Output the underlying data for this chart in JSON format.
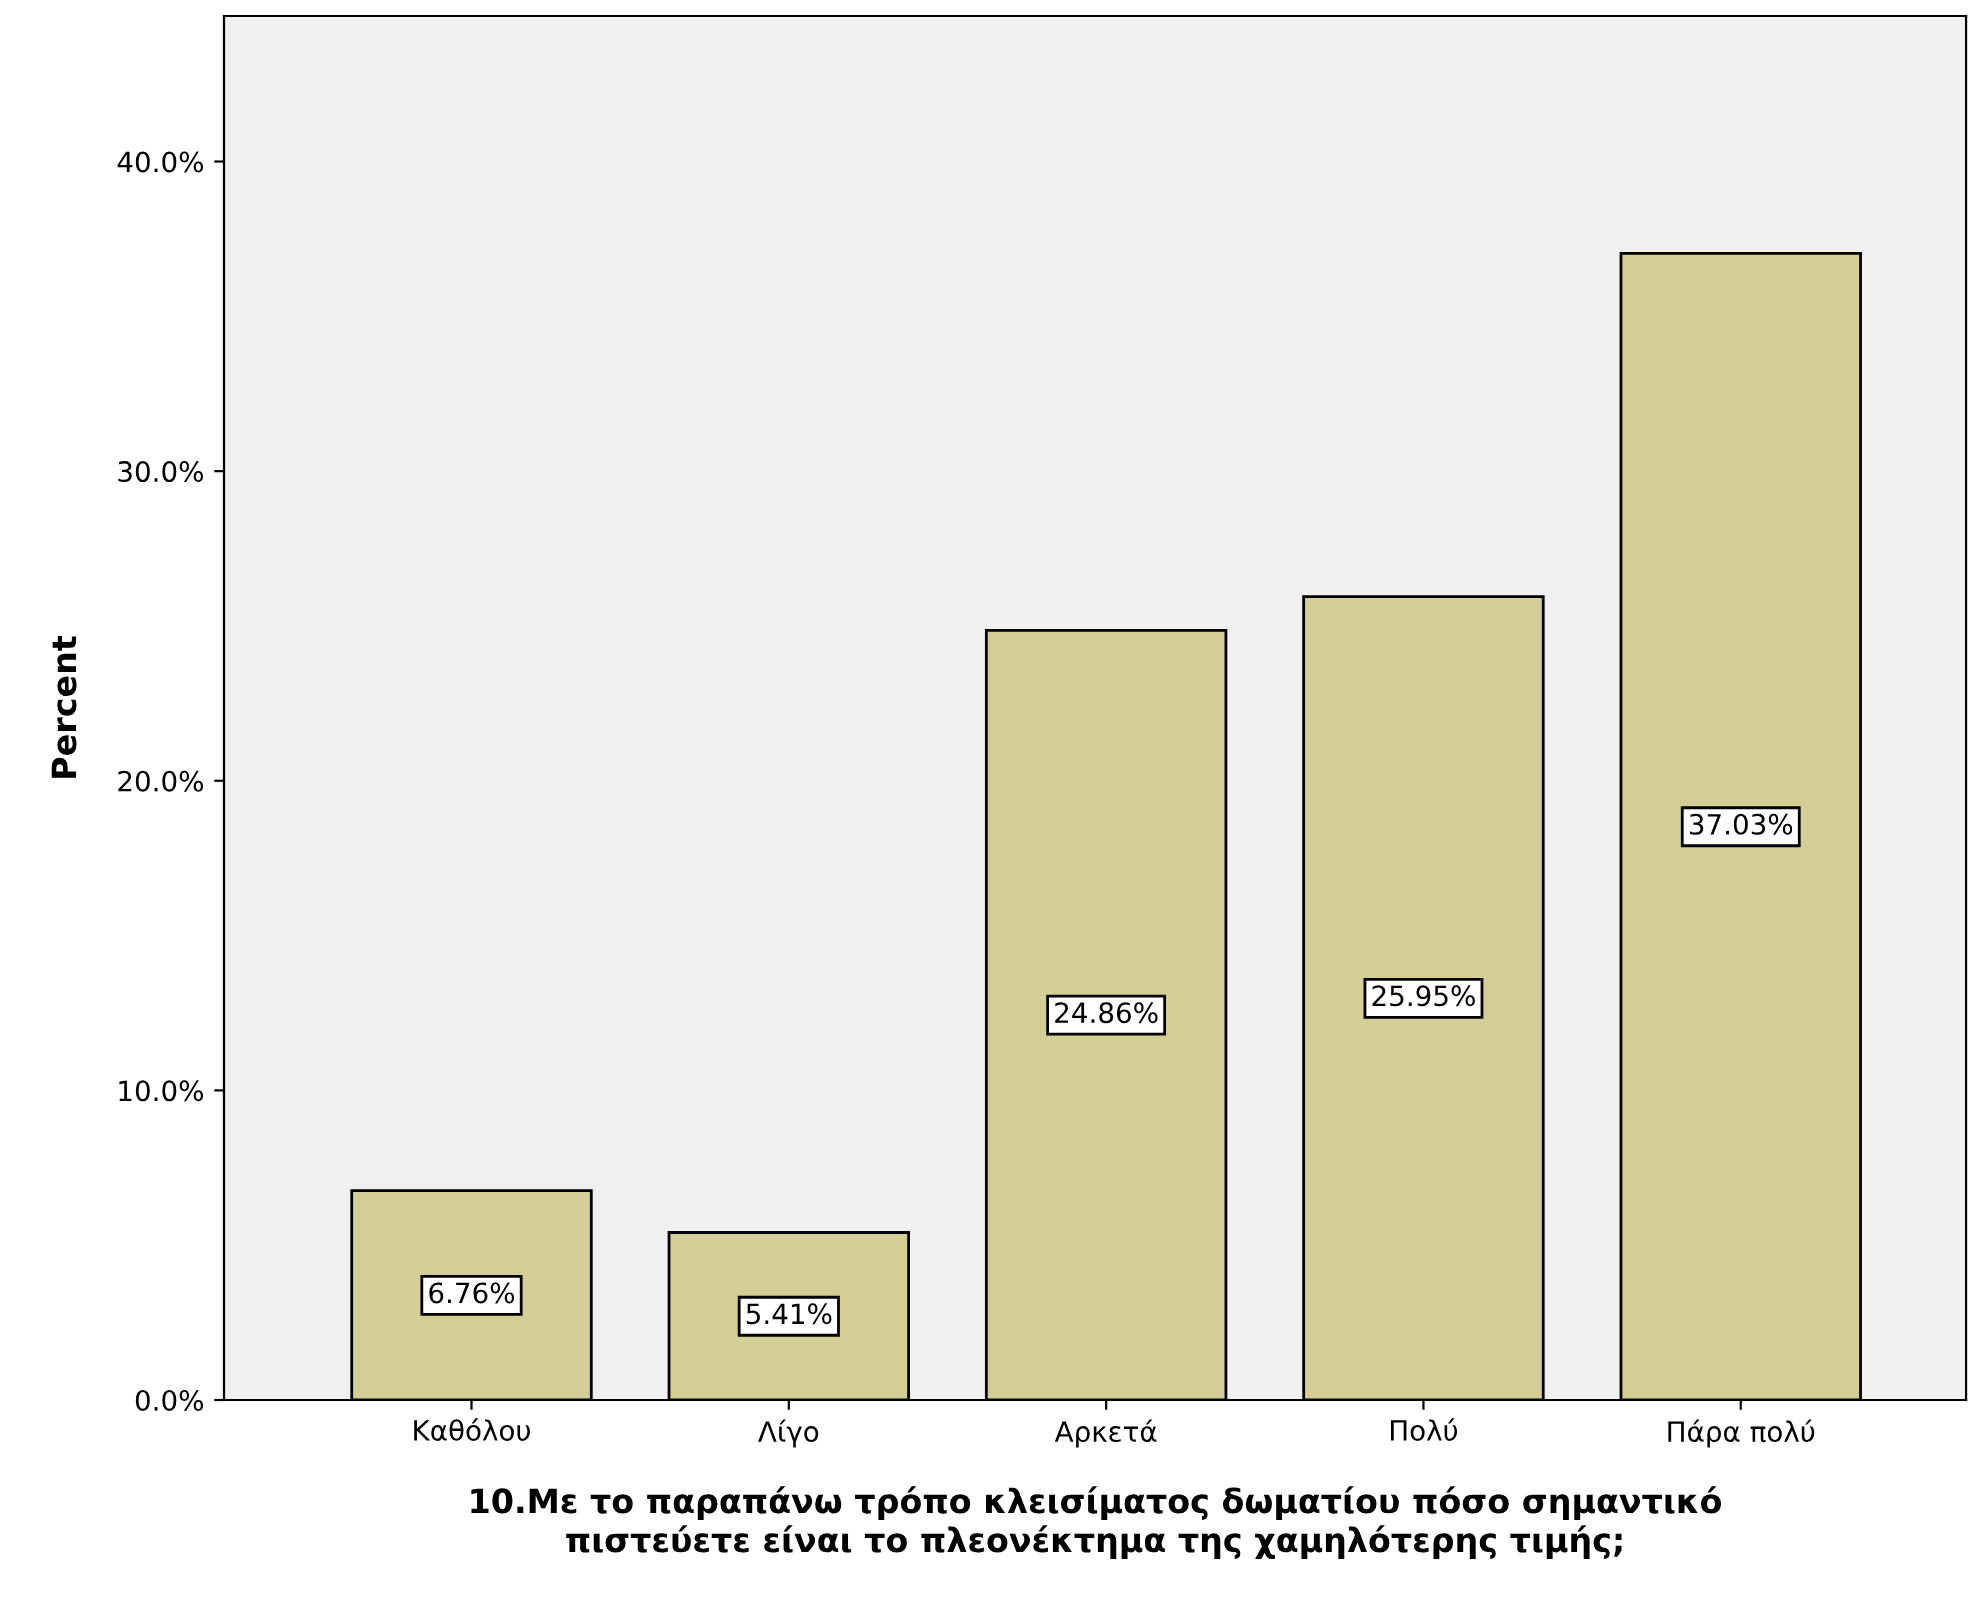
{
  "chart_data": {
    "type": "bar",
    "xlabel": "10.Με το παραπάνω τρόπο κλεισίματος δωματίου πόσο σημαντικό\nπιστεύετε είναι το πλεονέκτημα της χαμηλότερης τιμής;",
    "ylabel": "Percent",
    "categories": [
      "Καθόλου",
      "Λίγο",
      "Αρκετά",
      "Πολύ",
      "Πάρα πολύ"
    ],
    "values": [
      6.76,
      5.41,
      24.86,
      25.95,
      37.03
    ],
    "value_labels": [
      "6.76%",
      "5.41%",
      "24.86%",
      "25.95%",
      "37.03%"
    ],
    "color": "#d3ce96",
    "ylim": [
      0,
      44.7
    ],
    "yticks": [
      {
        "value": 0,
        "label": "0.0%"
      },
      {
        "value": 10,
        "label": "10.0%"
      },
      {
        "value": 20,
        "label": "20.0%"
      },
      {
        "value": 30,
        "label": "30.0%"
      },
      {
        "value": 40,
        "label": "40.0%"
      }
    ],
    "grid": false
  }
}
